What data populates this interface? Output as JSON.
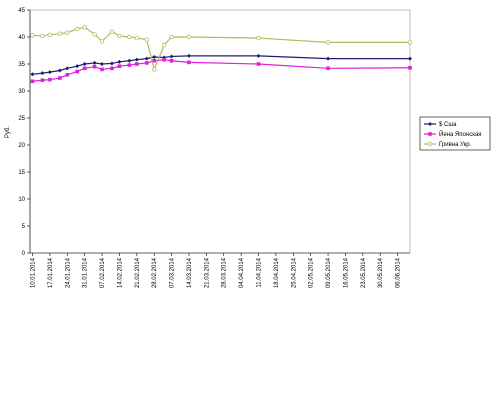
{
  "chart_data": {
    "type": "line",
    "y_label": "Руб.",
    "x": [
      "10.01.2014",
      "14.01.2014",
      "17.01.2014",
      "21.01.2014",
      "24.01.2014",
      "28.01.2014",
      "31.01.2014",
      "04.02.2014",
      "07.02.2014",
      "11.02.2014",
      "14.02.2014",
      "18.02.2014",
      "21.02.2014",
      "25.02.2014",
      "28.02.2014",
      "04.03.2014",
      "07.03.2014",
      "14.03.2014",
      "11.04.2014",
      "09.05.2014",
      "11.06.2014"
    ],
    "series": [
      {
        "name": "$ Сша",
        "color": "#1c1c72",
        "marker": "diamond",
        "values": [
          33.1,
          33.3,
          33.5,
          33.8,
          34.2,
          34.6,
          35.0,
          35.2,
          35.0,
          35.1,
          35.4,
          35.6,
          35.8,
          36.0,
          36.3,
          36.2,
          36.4,
          36.5,
          36.5,
          36.0,
          36.0
        ]
      },
      {
        "name": "Йена Японская",
        "color": "#e020d8",
        "marker": "square",
        "values": [
          31.8,
          32.0,
          32.1,
          32.4,
          33.0,
          33.6,
          34.2,
          34.5,
          34.0,
          34.2,
          34.6,
          34.8,
          35.0,
          35.2,
          35.6,
          35.8,
          35.6,
          35.3,
          35.0,
          34.2,
          34.3
        ]
      },
      {
        "name": "Гривна Укр.",
        "color": "#b8b860",
        "marker": "circle",
        "values": [
          40.3,
          40.2,
          40.4,
          40.6,
          40.8,
          41.5,
          41.8,
          40.5,
          39.2,
          41.0,
          40.2,
          40.0,
          39.8,
          39.5,
          34.0,
          38.5,
          40.0,
          40.0,
          39.8,
          39.0,
          39.0
        ]
      }
    ],
    "xlim": [
      "09.01.2014",
      "11.06.2014"
    ],
    "xticks": [
      "10.01.2014",
      "17.01.2014",
      "24.01.2014",
      "31.01.2014",
      "07.02.2014",
      "14.02.2014",
      "21.02.2014",
      "28.02.2014",
      "07.03.2014",
      "14.03.2014",
      "21.03.2014",
      "28.03.2014",
      "04.04.2014",
      "11.04.2014",
      "18.04.2014",
      "25.04.2014",
      "02.05.2014",
      "09.05.2014",
      "16.05.2014",
      "23.05.2014",
      "30.05.2014",
      "06.06.2014"
    ],
    "ylim": [
      0,
      45
    ],
    "yticks": [
      0,
      5,
      10,
      15,
      20,
      25,
      30,
      35,
      40,
      45
    ],
    "grid": false
  }
}
